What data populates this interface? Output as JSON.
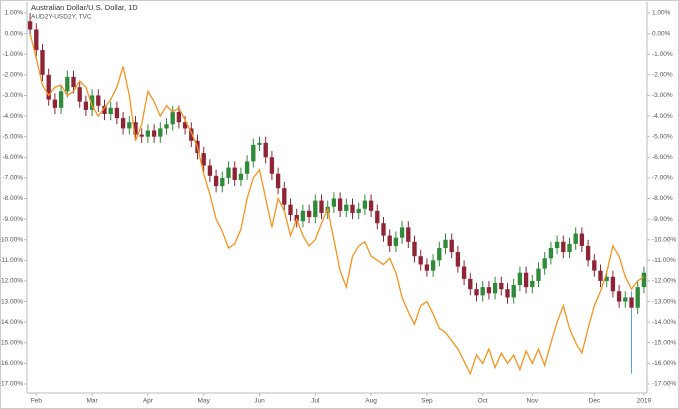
{
  "chart_data": {
    "type": "candlestick",
    "title": "Australian Dollar/U.S. Dollar, 1D",
    "subtitle": "AUD2Y-USD2Y, TVC",
    "categories": [
      null,
      "Feb",
      null,
      null,
      null,
      null,
      null,
      null,
      null,
      null,
      "Mar",
      null,
      null,
      null,
      null,
      null,
      null,
      null,
      null,
      "Apr",
      null,
      null,
      null,
      null,
      null,
      null,
      null,
      null,
      "May",
      null,
      null,
      null,
      null,
      null,
      null,
      null,
      null,
      "Jun",
      null,
      null,
      null,
      null,
      null,
      null,
      null,
      null,
      "Jul",
      null,
      null,
      null,
      null,
      null,
      null,
      null,
      null,
      "Aug",
      null,
      null,
      null,
      null,
      null,
      null,
      null,
      null,
      "Sep",
      null,
      null,
      null,
      null,
      null,
      null,
      null,
      null,
      "Oct",
      null,
      null,
      null,
      null,
      null,
      null,
      null,
      "Nov",
      null,
      null,
      null,
      null,
      null,
      null,
      null,
      null,
      null,
      "Dec",
      null,
      null,
      null,
      null,
      null,
      null,
      null,
      "2019"
    ],
    "open": [
      0.6,
      0.2,
      -0.8,
      -2.0,
      -3.2,
      -3.6,
      -2.8,
      -2.1,
      -2.6,
      -3.3,
      -3.7,
      -3.0,
      -3.5,
      -3.9,
      -3.6,
      -4.1,
      -4.6,
      -4.3,
      -4.9,
      -5.0,
      -4.7,
      -5.0,
      -4.6,
      -4.4,
      -3.8,
      -4.3,
      -4.6,
      -5.2,
      -5.8,
      -6.4,
      -6.9,
      -7.4,
      -7.0,
      -6.5,
      -7.1,
      -6.8,
      -6.2,
      -5.4,
      -5.3,
      -6.0,
      -6.8,
      -7.5,
      -8.3,
      -8.8,
      -9.1,
      -8.6,
      -8.9,
      -8.1,
      -8.7,
      -8.4,
      -8.0,
      -8.6,
      -8.3,
      -8.7,
      -8.5,
      -8.1,
      -8.6,
      -9.2,
      -9.8,
      -10.3,
      -9.9,
      -9.4,
      -10.1,
      -10.8,
      -11.2,
      -11.5,
      -11.0,
      -10.4,
      -10.0,
      -10.6,
      -11.3,
      -11.9,
      -12.4,
      -12.7,
      -12.3,
      -12.6,
      -12.1,
      -12.4,
      -12.8,
      -12.2,
      -11.6,
      -12.3,
      -12.0,
      -11.4,
      -10.9,
      -10.4,
      -10.1,
      -10.6,
      -10.2,
      -9.7,
      -10.3,
      -11.0,
      -11.5,
      -12.0,
      -11.8,
      -12.5,
      -13.0,
      -12.8,
      -13.3,
      -12.3
    ],
    "high": [
      1.0,
      0.5,
      -0.5,
      -1.7,
      -2.9,
      -2.5,
      -1.8,
      -1.8,
      -2.3,
      -3.0,
      -2.7,
      -2.7,
      -3.2,
      -3.3,
      -3.3,
      -3.8,
      -4.0,
      -4.0,
      -4.6,
      -4.4,
      -4.4,
      -4.3,
      -4.1,
      -3.5,
      -3.5,
      -4.0,
      -4.3,
      -4.9,
      -5.5,
      -6.1,
      -6.6,
      -6.7,
      -6.2,
      -6.2,
      -6.5,
      -5.9,
      -5.1,
      -5.0,
      -5.0,
      -5.7,
      -6.5,
      -7.2,
      -8.0,
      -8.5,
      -8.3,
      -8.3,
      -7.8,
      -7.8,
      -8.1,
      -7.7,
      -7.7,
      -8.0,
      -8.0,
      -8.2,
      -7.8,
      -7.8,
      -8.3,
      -8.9,
      -9.5,
      -9.6,
      -9.1,
      -9.1,
      -9.8,
      -10.5,
      -10.9,
      -10.7,
      -10.1,
      -9.7,
      -9.7,
      -10.3,
      -11.0,
      -11.6,
      -12.1,
      -12.0,
      -12.0,
      -11.8,
      -11.8,
      -12.1,
      -11.9,
      -11.3,
      -11.3,
      -11.7,
      -11.1,
      -10.6,
      -10.1,
      -9.8,
      -9.8,
      -9.9,
      -9.4,
      -9.4,
      -10.0,
      -10.7,
      -11.2,
      -11.5,
      -11.5,
      -12.2,
      -12.5,
      -12.5,
      -12.0,
      -11.3
    ],
    "low": [
      -0.1,
      -1.1,
      -2.3,
      -3.5,
      -3.9,
      -3.9,
      -3.1,
      -2.9,
      -3.6,
      -4.0,
      -4.0,
      -3.8,
      -4.2,
      -4.2,
      -4.4,
      -4.9,
      -4.9,
      -5.2,
      -5.3,
      -5.3,
      -5.3,
      -5.3,
      -4.9,
      -4.7,
      -4.6,
      -4.9,
      -5.5,
      -6.1,
      -6.7,
      -7.2,
      -7.7,
      -7.7,
      -7.3,
      -7.4,
      -7.4,
      -7.1,
      -6.5,
      -5.7,
      -6.3,
      -7.1,
      -7.8,
      -8.6,
      -9.1,
      -9.4,
      -9.4,
      -9.2,
      -9.2,
      -9.0,
      -9.0,
      -8.7,
      -8.9,
      -8.9,
      -9.0,
      -9.0,
      -8.8,
      -8.9,
      -9.5,
      -10.1,
      -10.6,
      -10.6,
      -10.2,
      -10.4,
      -11.1,
      -11.5,
      -11.8,
      -11.8,
      -11.3,
      -10.7,
      -10.9,
      -11.6,
      -12.2,
      -12.7,
      -13.0,
      -13.0,
      -12.9,
      -12.9,
      -12.7,
      -13.1,
      -13.1,
      -12.5,
      -12.6,
      -12.6,
      -12.3,
      -11.7,
      -11.2,
      -10.7,
      -10.9,
      -10.9,
      -10.5,
      -10.6,
      -11.3,
      -11.8,
      -12.3,
      -12.3,
      -12.8,
      -13.3,
      -13.3,
      -16.5,
      -13.6,
      -12.6
    ],
    "close": [
      0.2,
      -0.8,
      -2.0,
      -3.2,
      -3.6,
      -2.8,
      -2.1,
      -2.6,
      -3.3,
      -3.7,
      -3.0,
      -3.5,
      -3.9,
      -3.6,
      -4.1,
      -4.6,
      -4.3,
      -4.9,
      -5.0,
      -4.7,
      -5.0,
      -4.6,
      -4.4,
      -3.8,
      -4.3,
      -4.6,
      -5.2,
      -5.8,
      -6.4,
      -6.9,
      -7.4,
      -7.0,
      -6.5,
      -7.1,
      -6.8,
      -6.2,
      -5.4,
      -5.3,
      -6.0,
      -6.8,
      -7.5,
      -8.3,
      -8.8,
      -9.1,
      -8.6,
      -8.9,
      -8.1,
      -8.7,
      -8.4,
      -8.0,
      -8.6,
      -8.3,
      -8.7,
      -8.5,
      -8.1,
      -8.6,
      -9.2,
      -9.8,
      -10.3,
      -9.9,
      -9.4,
      -10.1,
      -10.8,
      -11.2,
      -11.5,
      -11.0,
      -10.4,
      -10.0,
      -10.6,
      -11.3,
      -11.9,
      -12.4,
      -12.7,
      -12.3,
      -12.6,
      -12.1,
      -12.4,
      -12.8,
      -12.2,
      -11.6,
      -12.3,
      -12.0,
      -11.4,
      -10.9,
      -10.4,
      -10.1,
      -10.6,
      -10.2,
      -9.7,
      -10.3,
      -11.0,
      -11.5,
      -12.0,
      -11.8,
      -12.5,
      -13.0,
      -12.8,
      -13.3,
      -12.3,
      -11.6
    ],
    "up_color": "#2f8a3a",
    "down_color": "#8e2436",
    "line": {
      "color": "#f7931e",
      "values": [
        0.0,
        -1.2,
        -2.5,
        -3.0,
        -2.6,
        -2.5,
        -3.0,
        -2.8,
        -2.3,
        -2.6,
        -3.5,
        -4.0,
        -3.6,
        -3.2,
        -2.6,
        -1.6,
        -3.0,
        -5.2,
        -4.4,
        -2.8,
        -3.3,
        -4.0,
        -3.5,
        -3.8,
        -3.6,
        -4.2,
        -4.8,
        -5.5,
        -6.8,
        -7.8,
        -9.0,
        -9.6,
        -10.4,
        -10.2,
        -9.5,
        -8.0,
        -7.0,
        -6.6,
        -8.0,
        -9.4,
        -8.0,
        -8.6,
        -9.8,
        -9.0,
        -9.8,
        -10.3,
        -10.0,
        -9.2,
        -8.5,
        -10.0,
        -11.5,
        -12.3,
        -10.8,
        -10.3,
        -10.1,
        -10.8,
        -11.0,
        -11.2,
        -10.9,
        -11.6,
        -12.8,
        -13.5,
        -14.1,
        -13.2,
        -13.0,
        -13.6,
        -14.3,
        -14.5,
        -14.9,
        -15.3,
        -15.9,
        -16.5,
        -15.6,
        -16.0,
        -15.3,
        -16.2,
        -15.5,
        -16.0,
        -15.6,
        -16.3,
        -15.4,
        -16.0,
        -15.3,
        -16.1,
        -15.0,
        -14.0,
        -13.2,
        -14.3,
        -15.0,
        -15.5,
        -14.3,
        -13.2,
        -12.5,
        -11.6,
        -10.3,
        -10.8,
        -11.8,
        -12.4,
        -12.0,
        -11.8
      ]
    },
    "ylim": [
      -17,
      1
    ],
    "yticks": [
      {
        "value": 1,
        "label": "1.00%"
      },
      {
        "value": 0,
        "label": "0.00%"
      },
      {
        "value": -1,
        "label": "-1.00%"
      },
      {
        "value": -2,
        "label": "-2.00%"
      },
      {
        "value": -3,
        "label": "-3.00%"
      },
      {
        "value": -4,
        "label": "-4.00%"
      },
      {
        "value": -5,
        "label": "-5.00%"
      },
      {
        "value": -6,
        "label": "-6.00%"
      },
      {
        "value": -7,
        "label": "-7.00%"
      },
      {
        "value": -8,
        "label": "-8.00%"
      },
      {
        "value": -9,
        "label": "-9.00%"
      },
      {
        "value": -10,
        "label": "-10.00%"
      },
      {
        "value": -11,
        "label": "-11.00%"
      },
      {
        "value": -12,
        "label": "-12.00%"
      },
      {
        "value": -13,
        "label": "-13.00%"
      },
      {
        "value": -14,
        "label": "-14.00%"
      },
      {
        "value": -15,
        "label": "-15.00%"
      },
      {
        "value": -16,
        "label": "-16.00%"
      },
      {
        "value": -17,
        "label": "-17.00%"
      }
    ]
  }
}
